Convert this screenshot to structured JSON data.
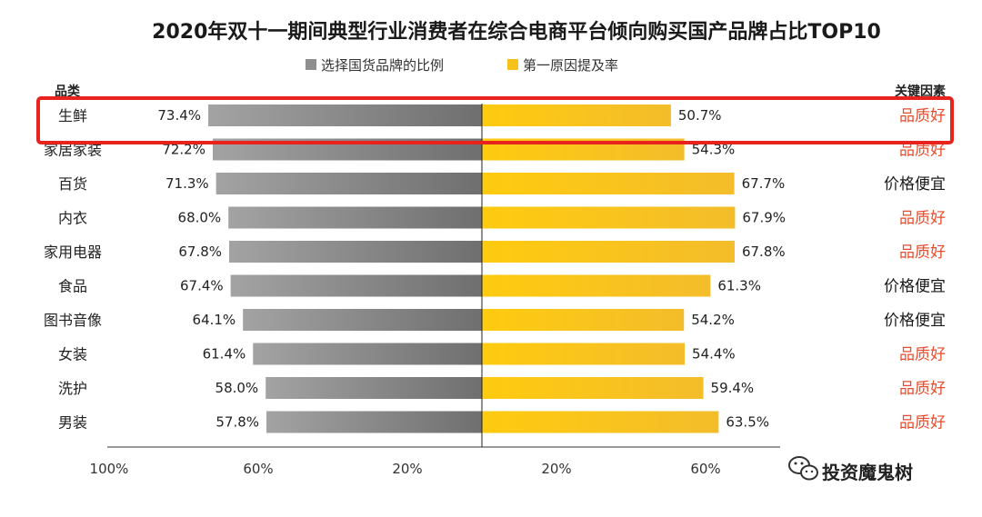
{
  "chart_data": {
    "type": "bar",
    "orientation": "horizontal-diverging",
    "title": "2020年双十一期间典型行业消费者在综合电商平台倾向购买国产品牌占比TOP10",
    "column_headers": {
      "left": "品类",
      "right": "关键因素"
    },
    "categories": [
      "生鲜",
      "家居家装",
      "百货",
      "内衣",
      "家用电器",
      "食品",
      "图书音像",
      "女装",
      "洗护",
      "男装"
    ],
    "series": [
      {
        "name": "选择国货品牌的比例",
        "color": "#8f8f8f",
        "side": "left",
        "values": [
          73.4,
          72.2,
          71.3,
          68.0,
          67.8,
          67.4,
          64.1,
          61.4,
          58.0,
          57.8
        ],
        "labels": [
          "73.4%",
          "72.2%",
          "71.3%",
          "68.0%",
          "67.8%",
          "67.4%",
          "64.1%",
          "61.4%",
          "58.0%",
          "57.8%"
        ]
      },
      {
        "name": "第一原因提及率",
        "color": "#f7c21b",
        "side": "right",
        "values": [
          50.7,
          54.3,
          67.7,
          67.9,
          67.8,
          61.3,
          54.2,
          54.4,
          59.4,
          63.5
        ],
        "labels": [
          "50.7%",
          "54.3%",
          "67.7%",
          "67.9%",
          "67.8%",
          "61.3%",
          "54.2%",
          "54.4%",
          "59.4%",
          "63.5%"
        ]
      }
    ],
    "key_factors": [
      "品质好",
      "品质好",
      "价格便宜",
      "品质好",
      "品质好",
      "价格便宜",
      "价格便宜",
      "品质好",
      "品质好",
      "品质好"
    ],
    "factor_colors": {
      "品质好": "#e84c2c",
      "价格便宜": "#1a1a1a"
    },
    "x_ticks_left": [
      "100%",
      "60%",
      "20%"
    ],
    "x_ticks_right": [
      "20%",
      "60%"
    ],
    "highlighted_category": "生鲜",
    "highlight_color": "#e8231e",
    "legend_position": "top-center"
  },
  "watermark": {
    "text": "投资魔鬼树"
  }
}
